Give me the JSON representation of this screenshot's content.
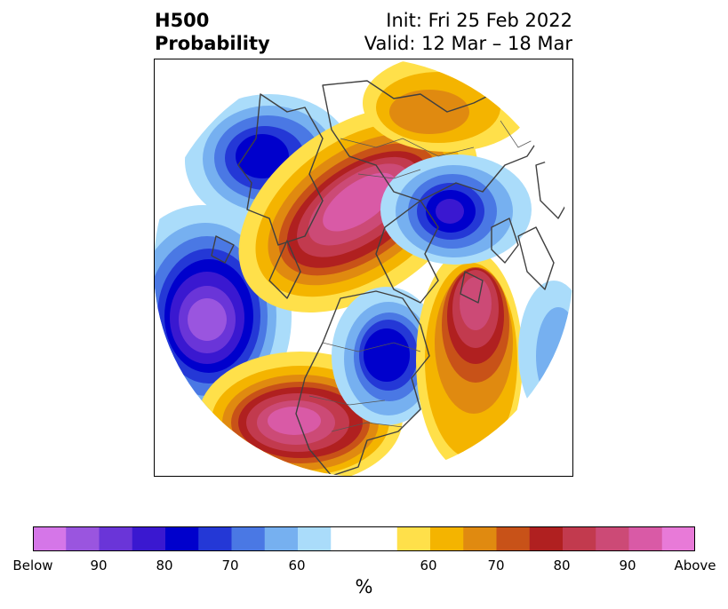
{
  "header": {
    "title_line1": "H500",
    "title_line2": "Probability",
    "init_text": "Init: Fri 25 Feb 2022",
    "valid_text": "Valid: 12 Mar – 18 Mar"
  },
  "colorbar": {
    "label": "%",
    "colors": [
      "#d576e8",
      "#9a55df",
      "#6a35d8",
      "#3a18d0",
      "#0000cc",
      "#2438d6",
      "#4a78e4",
      "#76b0f0",
      "#aadcfa",
      "#ffffff",
      "#ffffff",
      "#ffe04a",
      "#f4b400",
      "#e08a10",
      "#c85218",
      "#b02020",
      "#c23a4e",
      "#cc4a76",
      "#d95aa6",
      "#e87ad8"
    ],
    "ticks": [
      "Below",
      "90",
      "80",
      "70",
      "60",
      "60",
      "70",
      "80",
      "90",
      "Above"
    ]
  },
  "map": {
    "projection": "north-polar-stereographic",
    "field": "H500 probability",
    "anomalies": [
      {
        "region": "Alaska / Bering Sea",
        "sign": "below"
      },
      {
        "region": "North Pacific",
        "sign": "below"
      },
      {
        "region": "Western North America",
        "sign": "above"
      },
      {
        "region": "Eastern North America / Great Lakes",
        "sign": "below"
      },
      {
        "region": "North Atlantic",
        "sign": "above"
      },
      {
        "region": "Siberia / Arctic",
        "sign": "above"
      },
      {
        "region": "Western Europe / Scandinavia",
        "sign": "below"
      },
      {
        "region": "Eastern Europe / Russia",
        "sign": "above"
      }
    ]
  }
}
